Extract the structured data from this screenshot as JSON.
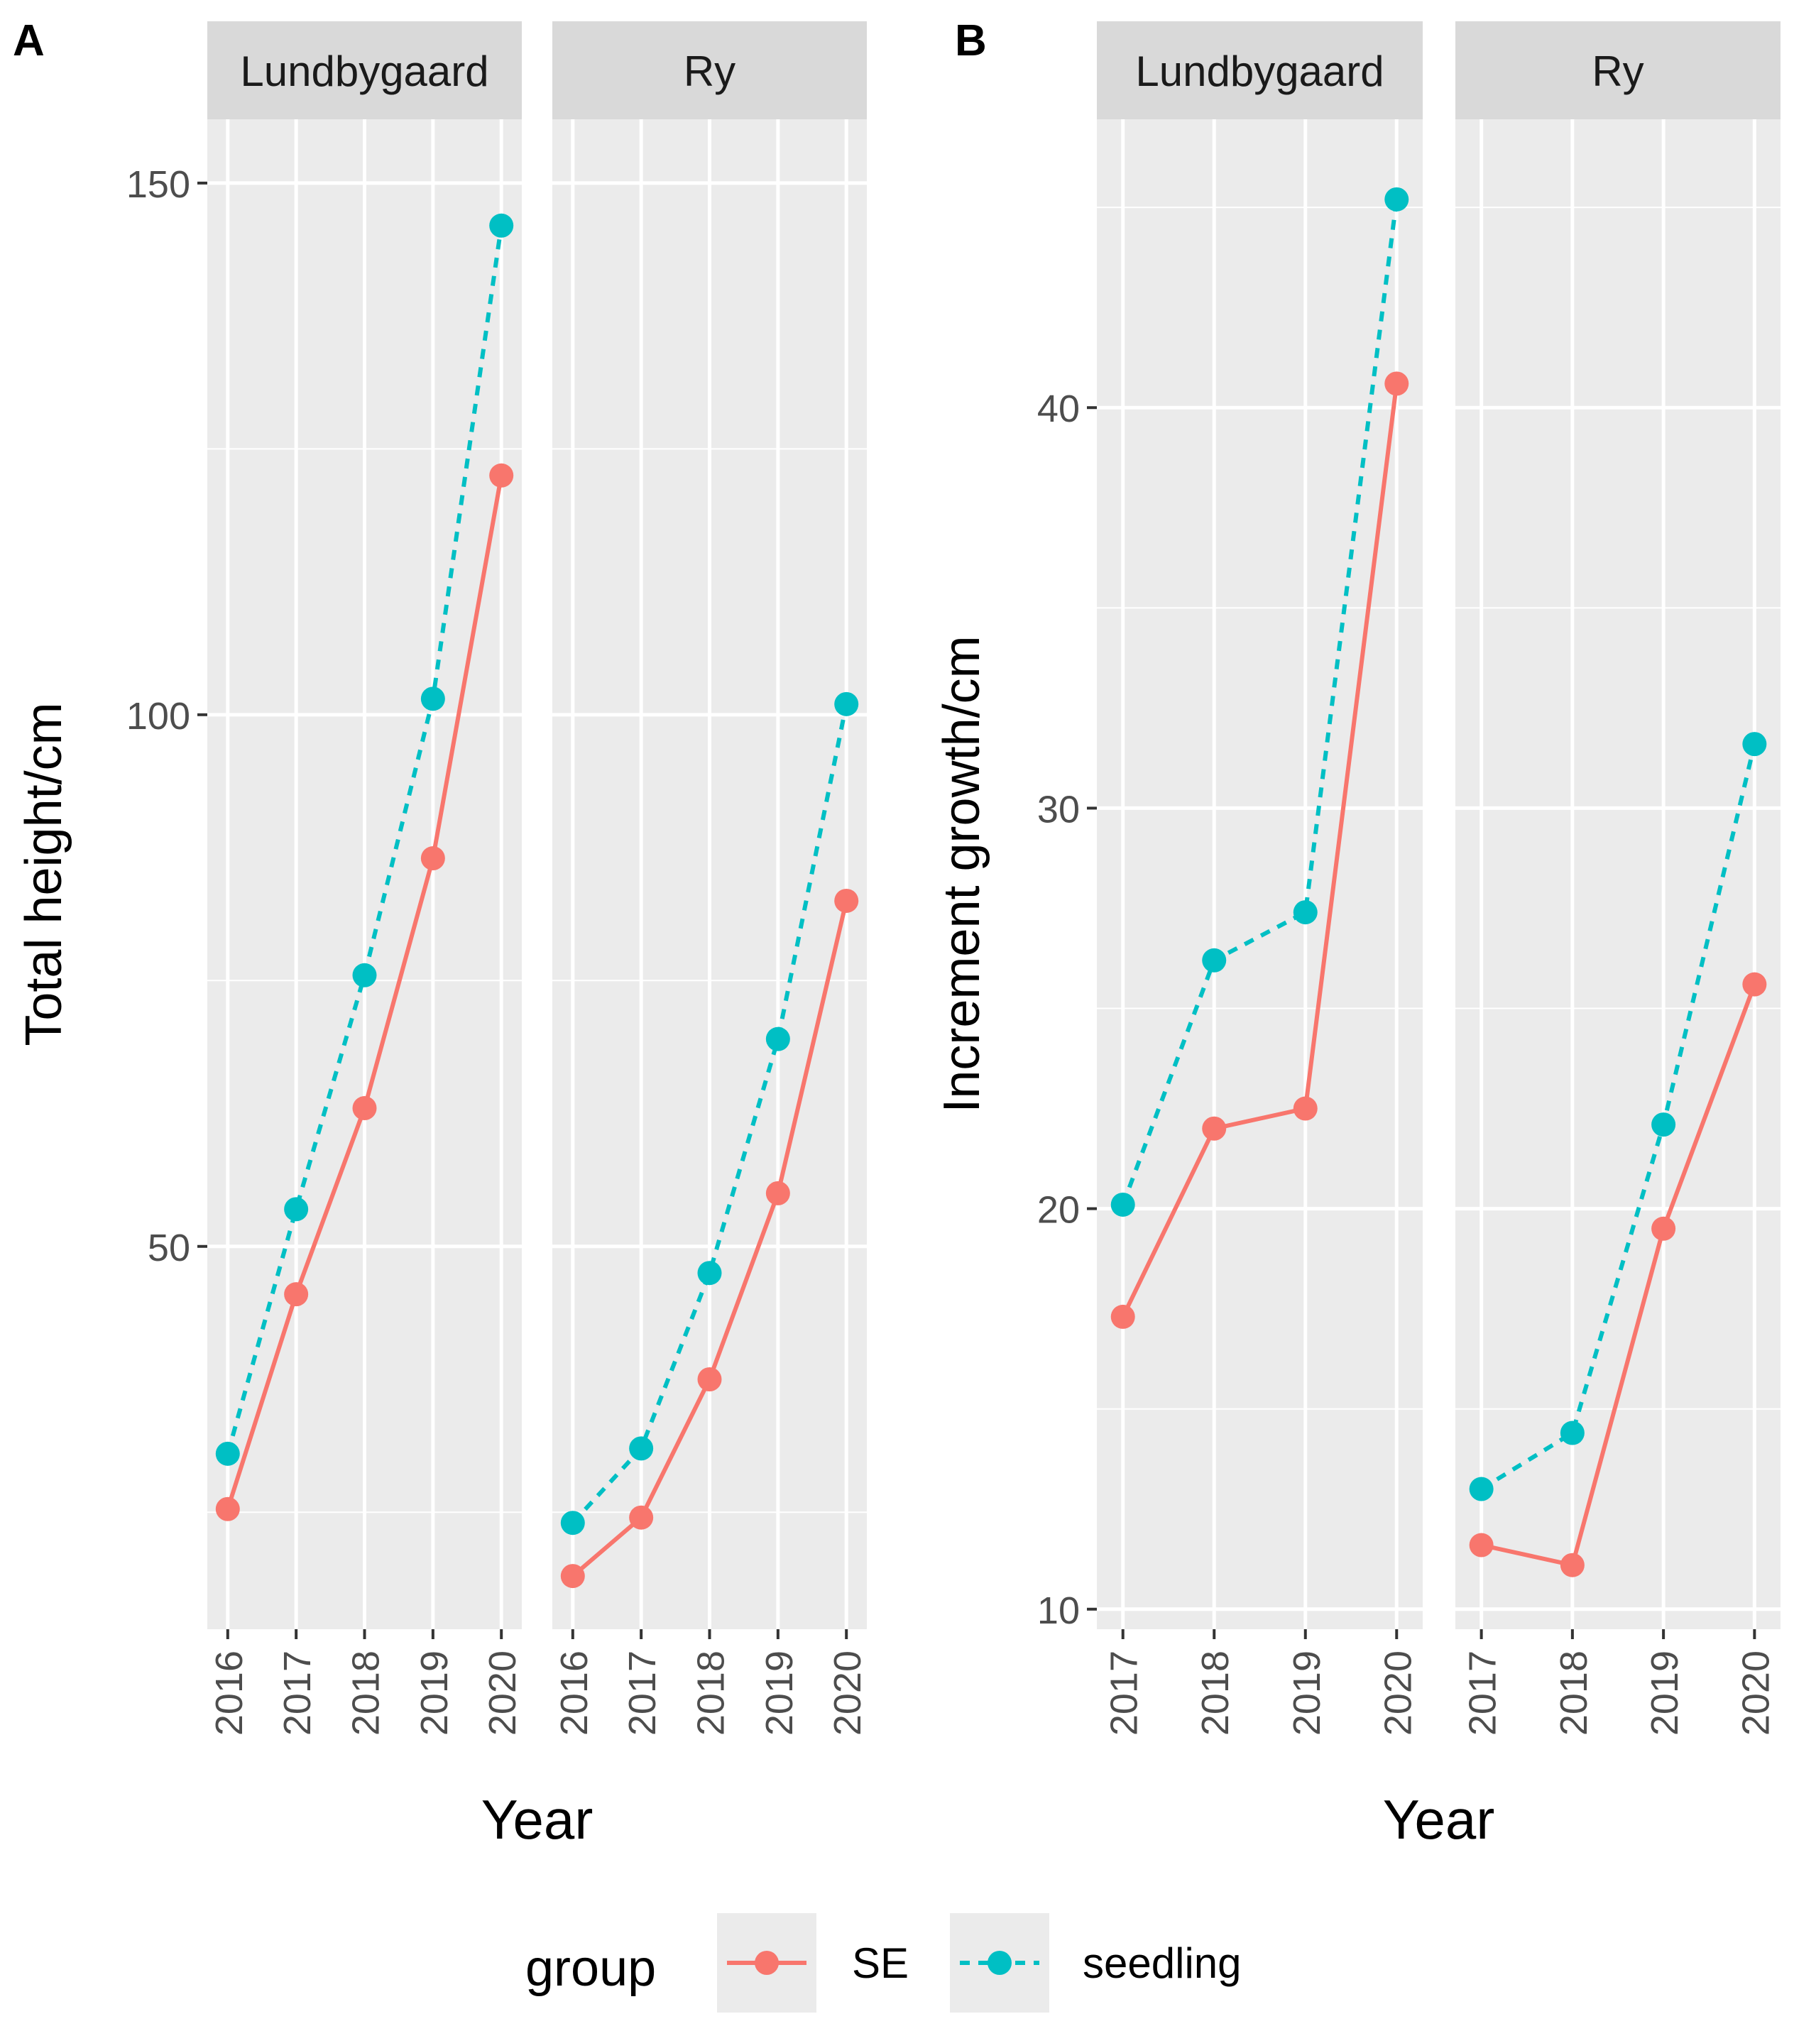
{
  "figure": {
    "panel_labels": [
      "A",
      "B"
    ],
    "legend": {
      "title": "group",
      "entries": [
        {
          "name": "SE",
          "color": "#F8766D",
          "linetype": "solid"
        },
        {
          "name": "seedling",
          "color": "#00BFC4",
          "linetype": "dashed"
        }
      ],
      "position": "bottom"
    },
    "colors": {
      "panel_bg": "#EBEBEB",
      "strip_bg": "#D9D9D9",
      "grid": "#FFFFFF",
      "axis_text": "#4D4D4D",
      "text": "#000000"
    }
  },
  "chart_data": [
    {
      "type": "line",
      "panel": "A",
      "facets": [
        "Lundbygaard",
        "Ry"
      ],
      "x": [
        "2016",
        "2017",
        "2018",
        "2019",
        "2020"
      ],
      "xlabel": "Year",
      "ylabel": "Total height/cm",
      "yticks": [
        50,
        100,
        150
      ],
      "yticklabels": [
        "50",
        "100",
        "150"
      ],
      "ylim": [
        14,
        156
      ],
      "grid": true,
      "series": [
        {
          "name": "SE",
          "facet": "Lundbygaard",
          "values": [
            25.3,
            45.5,
            63.0,
            86.5,
            122.5
          ]
        },
        {
          "name": "seedling",
          "facet": "Lundbygaard",
          "values": [
            30.5,
            53.5,
            75.5,
            101.5,
            146.0
          ]
        },
        {
          "name": "SE",
          "facet": "Ry",
          "values": [
            19.0,
            24.5,
            37.5,
            55.0,
            82.5
          ]
        },
        {
          "name": "seedling",
          "facet": "Ry",
          "values": [
            24.0,
            31.0,
            47.5,
            69.5,
            101.0
          ]
        }
      ]
    },
    {
      "type": "line",
      "panel": "B",
      "facets": [
        "Lundbygaard",
        "Ry"
      ],
      "x": [
        "2017",
        "2018",
        "2019",
        "2020"
      ],
      "xlabel": "Year",
      "ylabel": "Increment growth/cm",
      "yticks": [
        10,
        20,
        30,
        40
      ],
      "yticklabels": [
        "10",
        "20",
        "30",
        "40"
      ],
      "ylim": [
        9.5,
        47.2
      ],
      "grid": true,
      "series": [
        {
          "name": "SE",
          "facet": "Lundbygaard",
          "values": [
            17.3,
            22.0,
            22.5,
            40.6
          ]
        },
        {
          "name": "seedling",
          "facet": "Lundbygaard",
          "values": [
            20.1,
            26.2,
            27.4,
            45.2
          ]
        },
        {
          "name": "SE",
          "facet": "Ry",
          "values": [
            11.6,
            11.1,
            19.5,
            25.6
          ]
        },
        {
          "name": "seedling",
          "facet": "Ry",
          "values": [
            13.0,
            14.4,
            22.1,
            31.6
          ]
        }
      ]
    }
  ]
}
